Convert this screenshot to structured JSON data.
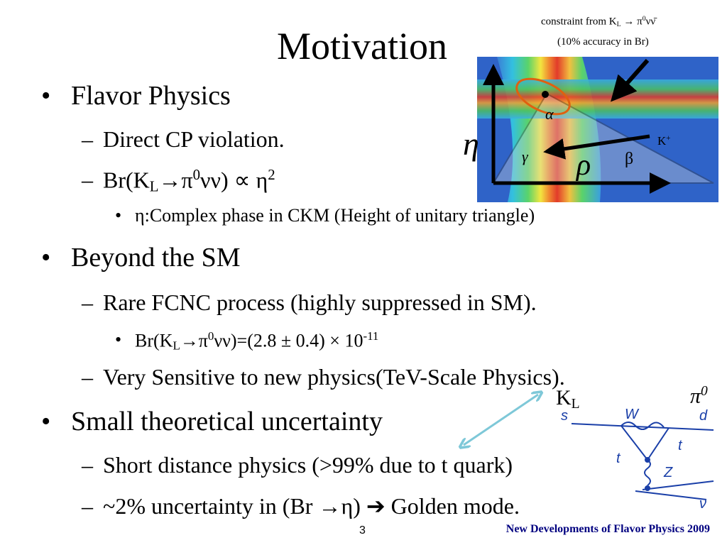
{
  "title": "Motivation",
  "bullets": [
    {
      "level": 1,
      "marker": "•",
      "runs": [
        {
          "t": "Flavor Physics"
        }
      ]
    },
    {
      "level": 2,
      "marker": "–",
      "runs": [
        {
          "t": "Direct CP violation."
        }
      ]
    },
    {
      "level": 2,
      "marker": "–",
      "runs": [
        {
          "t": "Br(K"
        },
        {
          "sub": "L"
        },
        {
          "t": "→π"
        },
        {
          "sup": "0"
        },
        {
          "t": "νν) ∝ η"
        },
        {
          "sup": "2"
        }
      ]
    },
    {
      "level": 3,
      "marker": "•",
      "runs": [
        {
          "t": "η:Complex phase in CKM (Height of  unitary triangle)"
        }
      ]
    },
    {
      "level": 1,
      "marker": "•",
      "runs": [
        {
          "t": "Beyond the SM"
        }
      ]
    },
    {
      "level": 2,
      "marker": "–",
      "runs": [
        {
          "t": "Rare FCNC process (highly suppressed in SM)."
        }
      ]
    },
    {
      "level": 3,
      "marker": "•",
      "runs": [
        {
          "t": "Br(K"
        },
        {
          "sub": "L"
        },
        {
          "t": "→π"
        },
        {
          "sup": "0"
        },
        {
          "t": "νν)=(2.8 ± 0.4) × 10"
        },
        {
          "sup": "-11"
        }
      ]
    },
    {
      "level": 2,
      "marker": "–",
      "runs": [
        {
          "t": "Very Sensitive to new physics(TeV-Scale Physics)."
        }
      ]
    },
    {
      "level": 1,
      "marker": "•",
      "runs": [
        {
          "t": "Small theoretical uncertainty"
        }
      ]
    },
    {
      "level": 2,
      "marker": "–",
      "runs": [
        {
          "t": "Short distance physics (>99% due to t quark)"
        }
      ]
    },
    {
      "level": 2,
      "marker": "–",
      "runs": [
        {
          "t": "~2% uncertainty in (Br →η)   ➔ Golden mode."
        }
      ]
    }
  ],
  "figure": {
    "constraint": [
      {
        "t": "constraint from  K"
      },
      {
        "sub": "L"
      },
      {
        "t": " → π"
      },
      {
        "sup": "0"
      },
      {
        "t": "νν̄"
      }
    ],
    "accuracy": "(10% accuracy in Br)",
    "eta": "η",
    "rho": "ρ",
    "kplus": [
      {
        "t": "K"
      },
      {
        "sup": "+"
      }
    ],
    "alpha": "α",
    "beta": "β",
    "gamma": "γ"
  },
  "diagram": {
    "kl": [
      {
        "t": "K"
      },
      {
        "sub": "L"
      }
    ],
    "pi0": [
      {
        "t": "π"
      },
      {
        "sup": "0"
      }
    ],
    "s": "s",
    "d": "d",
    "w": "W",
    "t1": "t",
    "t2": "t",
    "z": "Z",
    "nu": "ν"
  },
  "footer": {
    "page": "3",
    "note": "New Developments of Flavor Physics 2009"
  }
}
